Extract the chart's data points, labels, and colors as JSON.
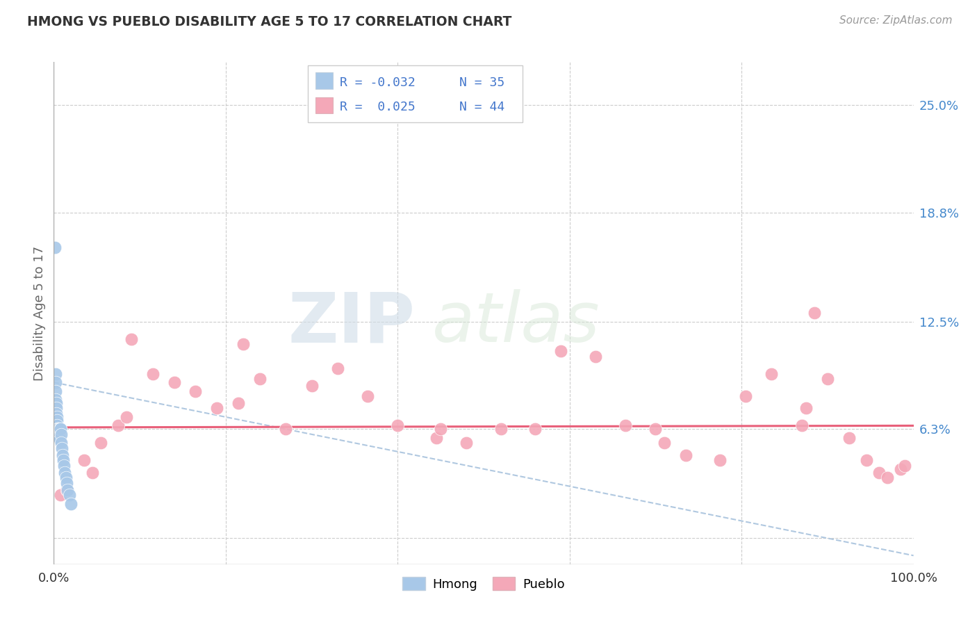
{
  "title": "HMONG VS PUEBLO DISABILITY AGE 5 TO 17 CORRELATION CHART",
  "source": "Source: ZipAtlas.com",
  "ylabel": "Disability Age 5 to 17",
  "xlim": [
    0,
    100
  ],
  "ylim": [
    -1.5,
    27.5
  ],
  "yticks": [
    0,
    6.3,
    12.5,
    18.8,
    25.0
  ],
  "ytick_labels": [
    "",
    "6.3%",
    "12.5%",
    "18.8%",
    "25.0%"
  ],
  "hmong_R": -0.032,
  "hmong_N": 35,
  "pueblo_R": 0.025,
  "pueblo_N": 44,
  "hmong_color": "#a8c8e8",
  "pueblo_color": "#f4a8b8",
  "hmong_trend_color": "#b0c8e0",
  "pueblo_trend_color": "#e8607a",
  "grid_color": "#cccccc",
  "background_color": "#ffffff",
  "watermark_zip": "ZIP",
  "watermark_atlas": "atlas",
  "hmong_x": [
    0.15,
    0.18,
    0.2,
    0.22,
    0.25,
    0.28,
    0.3,
    0.33,
    0.35,
    0.38,
    0.4,
    0.42,
    0.45,
    0.48,
    0.5,
    0.55,
    0.58,
    0.6,
    0.65,
    0.68,
    0.7,
    0.75,
    0.8,
    0.85,
    0.9,
    0.95,
    1.0,
    1.1,
    1.2,
    1.3,
    1.4,
    1.5,
    1.6,
    1.8,
    2.0
  ],
  "hmong_y": [
    16.8,
    9.5,
    9.0,
    8.5,
    8.0,
    7.8,
    7.5,
    7.2,
    7.0,
    6.8,
    6.5,
    6.3,
    6.3,
    6.3,
    6.3,
    6.1,
    6.0,
    6.0,
    5.8,
    5.7,
    6.3,
    6.3,
    6.3,
    6.0,
    5.5,
    5.2,
    4.8,
    4.5,
    4.2,
    3.8,
    3.5,
    3.2,
    2.8,
    2.5,
    2.0
  ],
  "pueblo_x": [
    0.8,
    1.5,
    3.5,
    5.5,
    7.5,
    9.0,
    11.5,
    14.0,
    16.5,
    19.0,
    21.5,
    24.0,
    27.0,
    30.0,
    33.0,
    36.5,
    40.0,
    44.5,
    48.0,
    52.0,
    56.0,
    59.0,
    63.0,
    66.5,
    70.0,
    73.5,
    77.5,
    80.5,
    83.5,
    87.0,
    87.5,
    90.0,
    92.5,
    94.5,
    96.0,
    97.0,
    98.5,
    99.0,
    4.5,
    8.5,
    22.0,
    45.0,
    71.0,
    88.5
  ],
  "pueblo_y": [
    2.5,
    2.8,
    4.5,
    5.5,
    6.5,
    11.5,
    9.5,
    9.0,
    8.5,
    7.5,
    7.8,
    9.2,
    6.3,
    8.8,
    9.8,
    8.2,
    6.5,
    5.8,
    5.5,
    6.3,
    6.3,
    10.8,
    10.5,
    6.5,
    6.3,
    4.8,
    4.5,
    8.2,
    9.5,
    6.5,
    7.5,
    9.2,
    5.8,
    4.5,
    3.8,
    3.5,
    4.0,
    4.2,
    3.8,
    7.0,
    11.2,
    6.3,
    5.5,
    13.0
  ],
  "pueblo_trend_start_y": 6.4,
  "pueblo_trend_end_y": 6.5,
  "hmong_trend_start_y": 9.0,
  "hmong_trend_end_y": -1.0
}
